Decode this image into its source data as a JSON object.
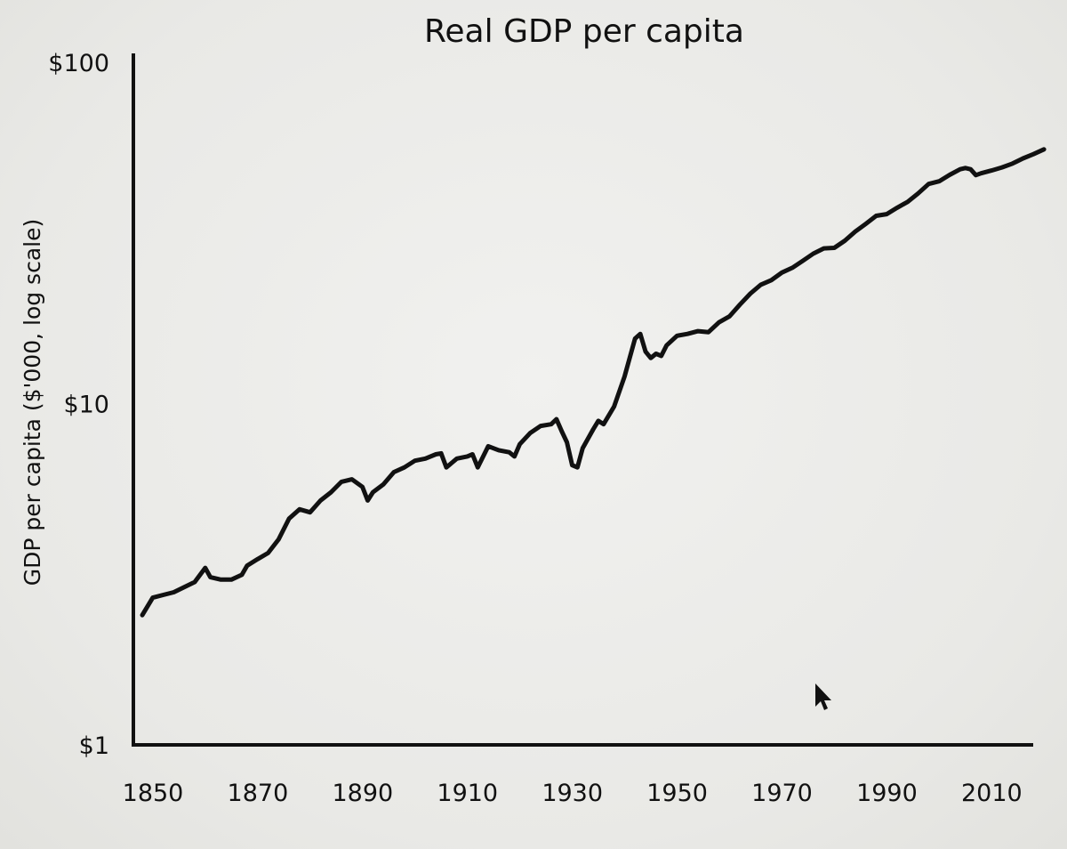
{
  "chart_data": {
    "type": "line",
    "title": "Real GDP per capita",
    "xlabel": "",
    "ylabel": "GDP per capita ($'000, log scale)",
    "y_scale": "log",
    "xlim": [
      1850,
      2023
    ],
    "ylim": [
      1,
      100
    ],
    "x_ticks": [
      1850,
      1870,
      1890,
      1910,
      1930,
      1950,
      1970,
      1990,
      2010
    ],
    "x_tick_labels": [
      "1850",
      "1870",
      "1890",
      "1910",
      "1930",
      "1950",
      "1970",
      "1990",
      "2010"
    ],
    "y_ticks": [
      1,
      10,
      100
    ],
    "y_tick_labels": [
      "$1",
      "$10",
      "$100"
    ],
    "grid": false,
    "legend": "none",
    "line_color": "#111111",
    "series": [
      {
        "x": [
          1850,
          1852,
          1854,
          1856,
          1858,
          1860,
          1862,
          1863,
          1865,
          1867,
          1869,
          1870,
          1872,
          1874,
          1876,
          1878,
          1880,
          1882,
          1884,
          1886,
          1888,
          1890,
          1892,
          1893,
          1894,
          1896,
          1898,
          1900,
          1902,
          1904,
          1906,
          1907,
          1908,
          1910,
          1912,
          1913,
          1914,
          1916,
          1918,
          1920,
          1921,
          1922,
          1924,
          1926,
          1928,
          1929,
          1930,
          1931,
          1932,
          1933,
          1934,
          1936,
          1937,
          1938,
          1940,
          1942,
          1944,
          1945,
          1946,
          1947,
          1948,
          1949,
          1950,
          1952,
          1954,
          1956,
          1958,
          1960,
          1962,
          1964,
          1966,
          1968,
          1970,
          1972,
          1974,
          1976,
          1978,
          1980,
          1982,
          1984,
          1986,
          1988,
          1990,
          1992,
          1994,
          1996,
          1998,
          2000,
          2002,
          2004,
          2006,
          2007,
          2008,
          2009,
          2010,
          2012,
          2014,
          2016,
          2018,
          2020,
          2022
        ],
        "y": [
          2.4,
          2.7,
          2.75,
          2.8,
          2.9,
          3.0,
          3.3,
          3.1,
          3.05,
          3.05,
          3.15,
          3.35,
          3.5,
          3.65,
          4.0,
          4.6,
          4.9,
          4.8,
          5.2,
          5.5,
          5.9,
          6.0,
          5.7,
          5.2,
          5.5,
          5.8,
          6.3,
          6.5,
          6.8,
          6.9,
          7.1,
          7.15,
          6.5,
          6.9,
          7.0,
          7.1,
          6.5,
          7.5,
          7.3,
          7.2,
          7.0,
          7.6,
          8.2,
          8.6,
          8.7,
          9.0,
          8.3,
          7.7,
          6.6,
          6.5,
          7.4,
          8.4,
          8.9,
          8.7,
          9.8,
          12.0,
          15.5,
          16.0,
          14.2,
          13.6,
          14.0,
          13.8,
          14.8,
          15.8,
          16.0,
          16.3,
          16.2,
          17.3,
          18.0,
          19.5,
          21.0,
          22.3,
          23.0,
          24.2,
          25.0,
          26.2,
          27.5,
          28.5,
          28.6,
          30.0,
          31.9,
          33.6,
          35.5,
          35.9,
          37.5,
          39.0,
          41.3,
          44.0,
          44.8,
          46.8,
          48.6,
          49.0,
          48.6,
          46.7,
          47.3,
          48.2,
          49.2,
          50.5,
          52.3,
          53.8,
          55.6
        ]
      }
    ]
  }
}
